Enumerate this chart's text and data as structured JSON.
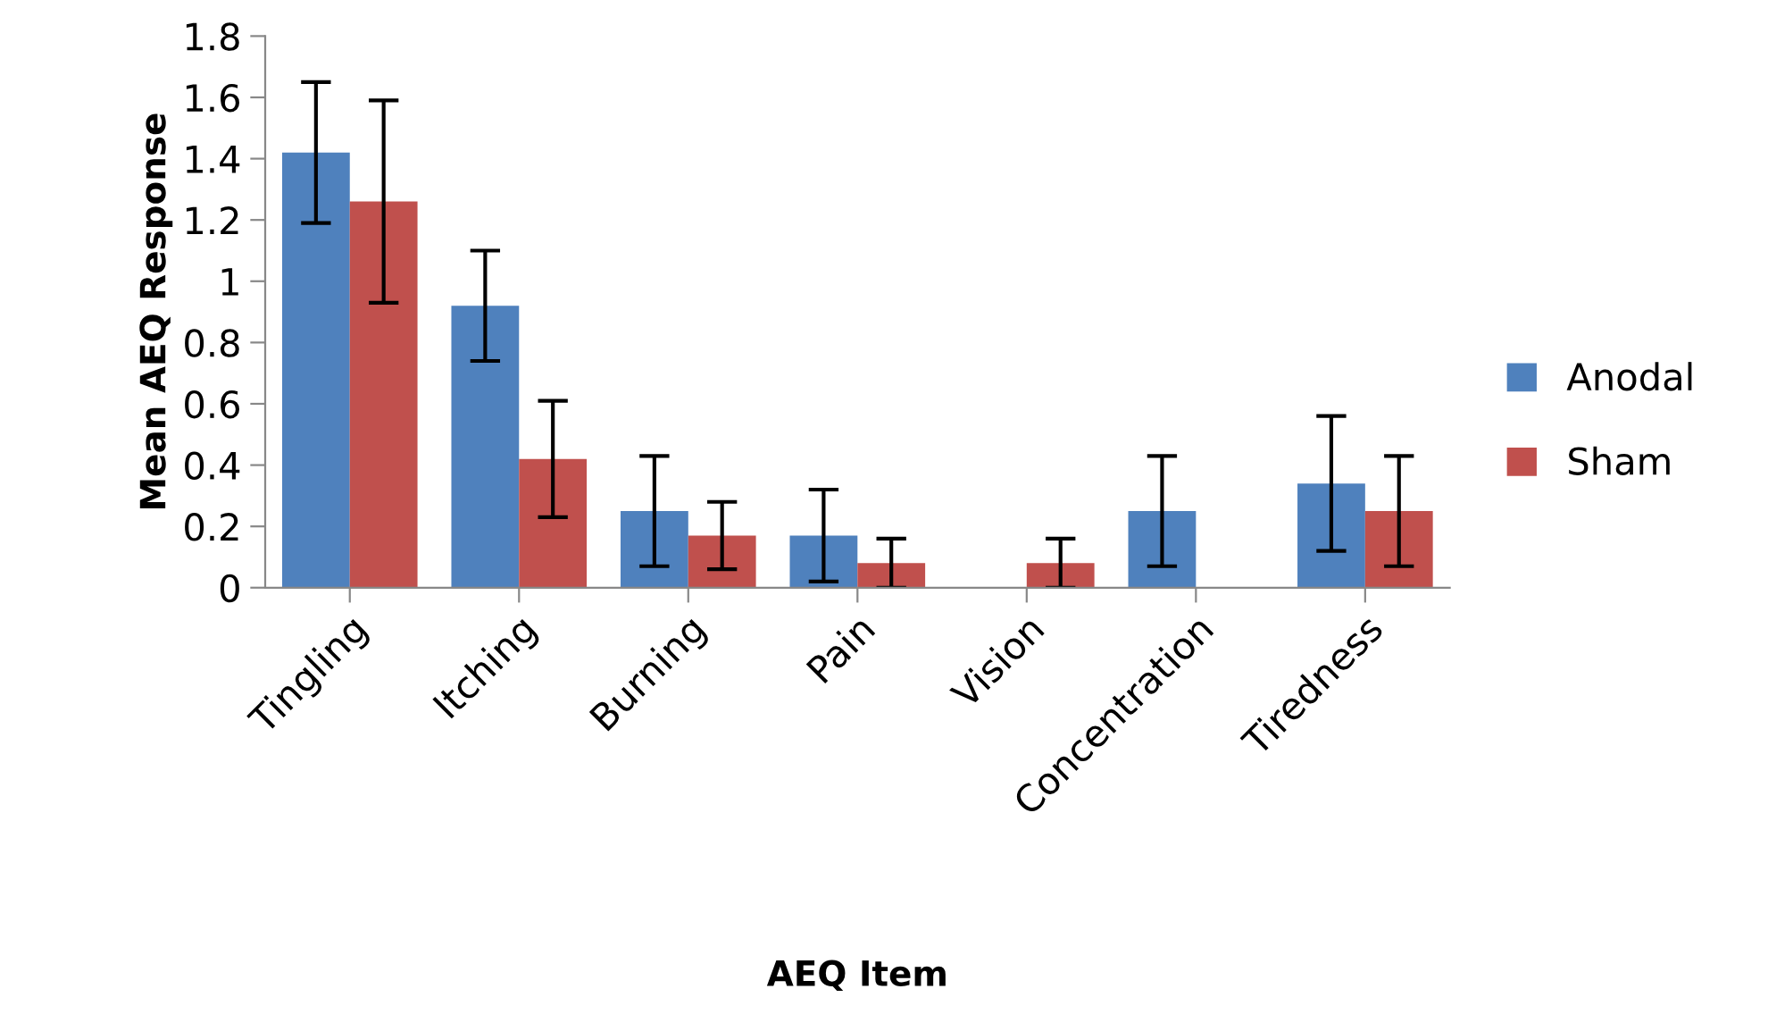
{
  "chart_data": {
    "type": "bar",
    "xlabel": "AEQ Item",
    "ylabel": "Mean AEQ Response",
    "categories": [
      "Tingling",
      "Itching",
      "Burning",
      "Pain",
      "Vision",
      "Concentration",
      "Tiredness"
    ],
    "series": [
      {
        "name": "Anodal",
        "color": "#4f81bd",
        "values": [
          1.42,
          0.92,
          0.25,
          0.17,
          0,
          0.25,
          0.34
        ],
        "errors": [
          0.23,
          0.18,
          0.18,
          0.15,
          null,
          0.18,
          0.22
        ]
      },
      {
        "name": "Sham",
        "color": "#c0504d",
        "values": [
          1.26,
          0.42,
          0.17,
          0.08,
          0.08,
          0,
          0.25
        ],
        "errors": [
          0.33,
          0.19,
          0.11,
          0.08,
          0.08,
          null,
          0.18
        ]
      }
    ],
    "ylim": [
      0,
      1.8
    ],
    "yticks": [
      0,
      0.2,
      0.4,
      0.6,
      0.8,
      1,
      1.2,
      1.4,
      1.6,
      1.8
    ],
    "grid": false,
    "legend": "right"
  }
}
